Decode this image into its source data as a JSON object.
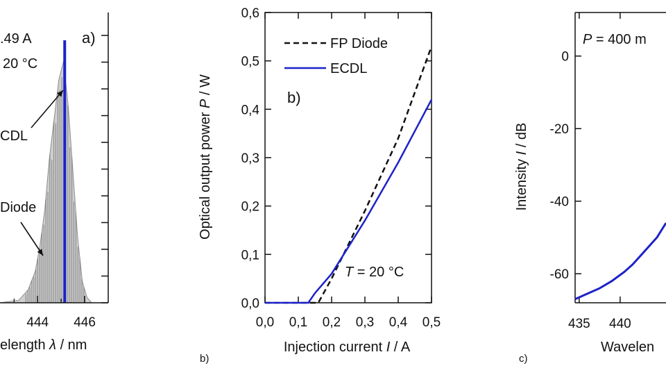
{
  "chart_data": [
    {
      "type": "line",
      "panel_label": "a)",
      "xlabel_prefix": "elength ",
      "xlabel_symbol": "λ",
      "xlabel_suffix": " / nm",
      "x_ticks": [
        "444",
        "446"
      ],
      "x_visible_range": [
        442.4,
        447.0
      ],
      "annotations": {
        "current": ".49 A",
        "temperature": "20 °C",
        "ecdl": "CDL",
        "diode": "Diode"
      },
      "series": [
        {
          "name": "FP Diode spectrum",
          "color": "#8c8c8c",
          "fill": "#cfcfcf",
          "x": [
            442.4,
            443.2,
            443.6,
            443.9,
            444.1,
            444.3,
            444.5,
            444.7,
            444.9,
            445.1,
            445.3,
            445.5,
            445.7,
            445.9,
            446.1,
            446.3
          ],
          "y": [
            0.0,
            0.01,
            0.05,
            0.12,
            0.22,
            0.35,
            0.55,
            0.7,
            0.85,
            0.92,
            0.75,
            0.5,
            0.25,
            0.08,
            0.02,
            0.0
          ]
        },
        {
          "name": "ECDL spectrum",
          "color": "#1c22c8",
          "x": [
            445.15,
            445.15
          ],
          "y": [
            0,
            1
          ]
        }
      ]
    },
    {
      "type": "line",
      "panel_label": "b)",
      "xlabel_prefix": "Injection current ",
      "xlabel_symbol": "I",
      "xlabel_suffix": " / A",
      "ylabel_prefix": "Optical output power ",
      "ylabel_symbol": "P",
      "ylabel_suffix": " / W",
      "xlim": [
        0.0,
        0.5
      ],
      "ylim": [
        0.0,
        0.6
      ],
      "x_ticks": [
        "0,0",
        "0,1",
        "0,2",
        "0,3",
        "0,4",
        "0,5"
      ],
      "x_tick_values": [
        0.0,
        0.1,
        0.2,
        0.3,
        0.4,
        0.5
      ],
      "y_ticks": [
        "0,0",
        "0,1",
        "0,2",
        "0,3",
        "0,4",
        "0,5",
        "0,6"
      ],
      "y_tick_values": [
        0.0,
        0.1,
        0.2,
        0.3,
        0.4,
        0.5,
        0.6
      ],
      "temperature_symbol": "T",
      "temperature_value": " = 20 °C",
      "legend": "top-left",
      "series": [
        {
          "name": "FP Diode",
          "color": "#111111",
          "dash": true,
          "x": [
            0.0,
            0.1,
            0.15,
            0.16,
            0.2,
            0.3,
            0.4,
            0.5
          ],
          "y": [
            0.0,
            0.0,
            0.0,
            0.0,
            0.05,
            0.19,
            0.34,
            0.53
          ]
        },
        {
          "name": "ECDL",
          "color": "#1c22c8",
          "dash": false,
          "x": [
            0.0,
            0.1,
            0.13,
            0.15,
            0.2,
            0.3,
            0.4,
            0.5
          ],
          "y": [
            0.0,
            0.0,
            0.0,
            0.02,
            0.06,
            0.17,
            0.29,
            0.42
          ]
        }
      ]
    },
    {
      "type": "line",
      "panel_label": "c)",
      "xlabel": "Wavelen",
      "ylabel_prefix": "Intensity ",
      "ylabel_symbol": "I",
      "ylabel_suffix": " / dB",
      "y_ticks": [
        "0",
        "-20",
        "-40",
        "-60"
      ],
      "y_tick_values": [
        0,
        -20,
        -40,
        -60
      ],
      "x_ticks": [
        "435",
        "440"
      ],
      "x_tick_values": [
        435,
        440
      ],
      "x_visible_range": [
        434.5,
        445.6
      ],
      "y_visible_range": [
        -68,
        12
      ],
      "power_symbol": "P",
      "power_value": " = 400 m",
      "series": [
        {
          "name": "ECDL spectrum",
          "color": "#1c22c8",
          "x": [
            434.5,
            436.0,
            437.5,
            439.0,
            440.5,
            441.5,
            442.5,
            443.5,
            444.5,
            445.6
          ],
          "y": [
            -67,
            -65.5,
            -64,
            -62,
            -59.5,
            -57.5,
            -55,
            -52.5,
            -50,
            -46
          ]
        }
      ]
    }
  ],
  "figure_labels": {
    "b": "b)",
    "c": "c)"
  }
}
